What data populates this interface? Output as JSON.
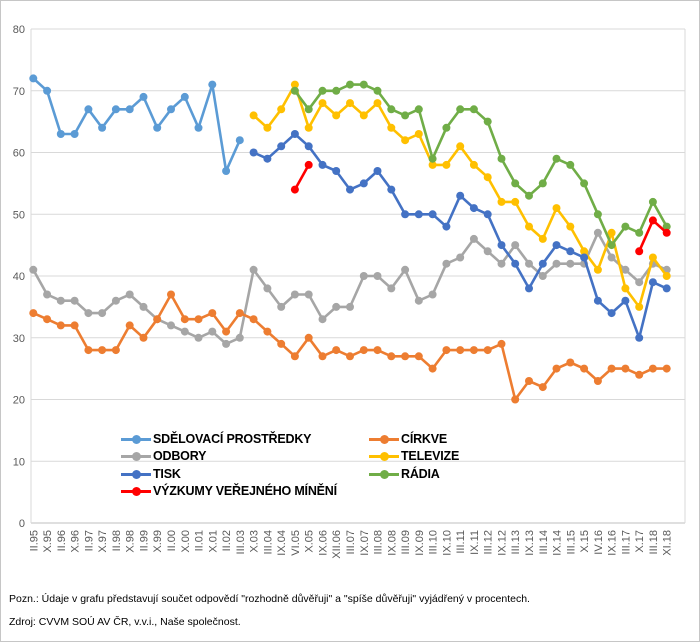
{
  "chart_data": {
    "type": "line",
    "title": "",
    "xlabel": "",
    "ylabel": "",
    "ylim": [
      0,
      80
    ],
    "ytick_step": 10,
    "yticks": [
      0,
      10,
      20,
      30,
      40,
      50,
      60,
      70,
      80
    ],
    "grid": "horizontal",
    "legend_position": "inside bottom-left, two columns",
    "categories": [
      "II.95",
      "X.95",
      "II.96",
      "X.96",
      "II.97",
      "X.97",
      "II.98",
      "X.98",
      "II.99",
      "X.99",
      "II.00",
      "X.00",
      "II.01",
      "X.01",
      "II.02",
      "III.03",
      "X.03",
      "III.04",
      "IX.04",
      "VI.05",
      "X.05",
      "IX.06",
      "XII.06",
      "III.07",
      "IX.07",
      "III.08",
      "IX.08",
      "III.09",
      "IX.09",
      "III.10",
      "IX.10",
      "III.11",
      "IX.11",
      "III.12",
      "IX.12",
      "III.13",
      "IX.13",
      "III.14",
      "IX.14",
      "III.15",
      "X.15",
      "IV.16",
      "IX.16",
      "III.17",
      "X.17",
      "III.18",
      "XI.18"
    ],
    "series": [
      {
        "name": "ODBORY",
        "color": "#A6A6A6",
        "values": [
          41,
          37,
          36,
          36,
          34,
          34,
          36,
          37,
          35,
          33,
          32,
          31,
          30,
          31,
          29,
          30,
          41,
          38,
          35,
          37,
          37,
          33,
          35,
          35,
          40,
          40,
          38,
          41,
          36,
          37,
          42,
          43,
          46,
          44,
          42,
          45,
          42,
          40,
          42,
          42,
          42,
          47,
          43,
          41,
          39,
          42,
          41
        ]
      },
      {
        "name": "CÍRKVE",
        "color": "#ED7D31",
        "values": [
          34,
          33,
          32,
          32,
          28,
          28,
          28,
          32,
          30,
          33,
          37,
          33,
          33,
          34,
          31,
          34,
          33,
          31,
          29,
          27,
          30,
          27,
          28,
          27,
          28,
          28,
          27,
          27,
          27,
          25,
          28,
          28,
          28,
          28,
          29,
          20,
          23,
          22,
          25,
          26,
          25,
          23,
          25,
          25,
          24,
          25,
          25
        ]
      },
      {
        "name": "SDĚLOVACÍ PROSTŘEDKY",
        "color": "#5B9BD5",
        "values": [
          72,
          70,
          63,
          63,
          67,
          64,
          67,
          67,
          69,
          64,
          67,
          69,
          64,
          71,
          57,
          62,
          null,
          null,
          null,
          null,
          null,
          null,
          null,
          null,
          null,
          null,
          null,
          null,
          null,
          null,
          null,
          null,
          null,
          null,
          null,
          null,
          null,
          null,
          null,
          null,
          null,
          null,
          null,
          null,
          null,
          null,
          null
        ]
      },
      {
        "name": "TELEVIZE",
        "color": "#FFC000",
        "values": [
          null,
          null,
          null,
          null,
          null,
          null,
          null,
          null,
          null,
          null,
          null,
          null,
          null,
          null,
          null,
          null,
          66,
          64,
          67,
          71,
          64,
          68,
          66,
          68,
          66,
          68,
          64,
          62,
          63,
          58,
          58,
          61,
          58,
          56,
          52,
          52,
          48,
          46,
          51,
          48,
          44,
          41,
          47,
          38,
          35,
          43,
          40
        ]
      },
      {
        "name": "RÁDIA",
        "color": "#70AD47",
        "values": [
          null,
          null,
          null,
          null,
          null,
          null,
          null,
          null,
          null,
          null,
          null,
          null,
          null,
          null,
          null,
          null,
          null,
          null,
          null,
          70,
          67,
          70,
          70,
          71,
          71,
          70,
          67,
          66,
          67,
          59,
          64,
          67,
          67,
          65,
          59,
          55,
          53,
          55,
          59,
          58,
          55,
          50,
          45,
          48,
          47,
          52,
          48
        ]
      },
      {
        "name": "TISK",
        "color": "#4472C4",
        "values": [
          null,
          null,
          null,
          null,
          null,
          null,
          null,
          null,
          null,
          null,
          null,
          null,
          null,
          null,
          null,
          null,
          60,
          59,
          61,
          63,
          61,
          58,
          57,
          54,
          55,
          57,
          54,
          50,
          50,
          50,
          48,
          53,
          51,
          50,
          45,
          42,
          38,
          42,
          45,
          44,
          43,
          36,
          34,
          36,
          30,
          39,
          38
        ]
      },
      {
        "name": "VÝZKUMY VEŘEJNÉHO MÍNĚNÍ",
        "color": "#FF0000",
        "values": [
          null,
          null,
          null,
          null,
          null,
          null,
          null,
          null,
          null,
          null,
          null,
          null,
          null,
          null,
          null,
          null,
          null,
          null,
          null,
          54,
          58,
          null,
          null,
          null,
          null,
          null,
          null,
          null,
          null,
          null,
          null,
          null,
          null,
          null,
          null,
          null,
          null,
          null,
          null,
          null,
          null,
          null,
          null,
          null,
          44,
          49,
          47
        ]
      }
    ]
  },
  "legend": {
    "columns": [
      [
        "SDĚLOVACÍ PROSTŘEDKY",
        "ODBORY",
        "TISK",
        "VÝZKUMY VEŘEJNÉHO MÍNĚNÍ"
      ],
      [
        "CÍRKVE",
        "TELEVIZE",
        "RÁDIA"
      ]
    ]
  },
  "footer": {
    "note": "Pozn.: Údaje v grafu představují součet odpovědí \"rozhodně důvěřuji\" a \"spíše důvěřuji\" vyjádřený v procentech.",
    "source": "Zdroj: CVVM SOÚ AV ČR, v.v.i., Naše společnost."
  },
  "colors": {
    "gridline": "#D9D9D9",
    "axis_line": "#BFBFBF",
    "tick_text": "#595959",
    "figure_border": "#C6C6C6"
  }
}
